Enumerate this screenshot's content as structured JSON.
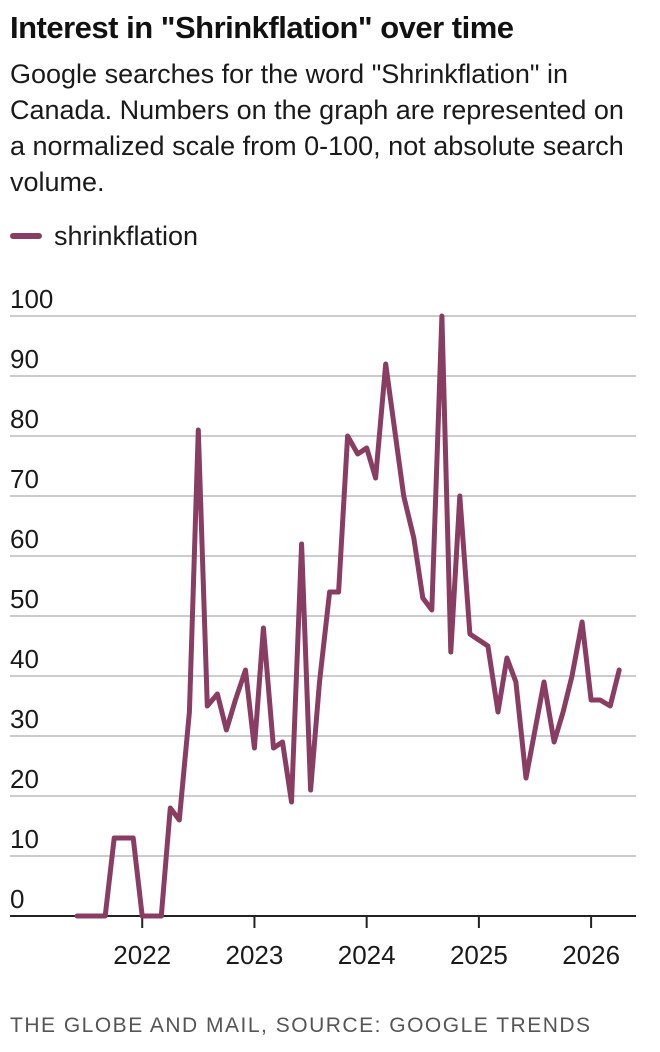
{
  "header": {
    "title": "Interest in \"Shrinkflation\" over time",
    "subtitle": "Google searches for the word \"Shrinkflation\" in Canada. Numbers on the graph are represented on a normalized scale from 0-100, not absolute search volume."
  },
  "legend": {
    "label": "shrinkflation"
  },
  "source": "THE GLOBE AND MAIL, SOURCE: GOOGLE TRENDS",
  "colors": {
    "series": "#8a3d63",
    "grid": "#cccccc",
    "axis": "#222222"
  },
  "chart_data": {
    "type": "line",
    "title": "",
    "xlabel": "",
    "ylabel": "",
    "ylim": [
      0,
      100
    ],
    "yticks": [
      0,
      10,
      20,
      30,
      40,
      50,
      60,
      70,
      80,
      90,
      100
    ],
    "xlim": [
      2021.0,
      2026.4
    ],
    "xticks": [
      "2022",
      "2023",
      "2024",
      "2025",
      "2026"
    ],
    "grid": true,
    "legend_position": "top-left",
    "series": [
      {
        "name": "shrinkflation",
        "x": [
          2021.42,
          2021.5,
          2021.58,
          2021.67,
          2021.75,
          2021.83,
          2021.92,
          2022.0,
          2022.08,
          2022.17,
          2022.25,
          2022.33,
          2022.42,
          2022.5,
          2022.58,
          2022.67,
          2022.75,
          2022.83,
          2022.92,
          2023.0,
          2023.08,
          2023.17,
          2023.25,
          2023.33,
          2023.42,
          2023.5,
          2023.58,
          2023.67,
          2023.75,
          2023.83,
          2023.92,
          2024.0,
          2024.08,
          2024.17,
          2024.25,
          2024.33,
          2024.42,
          2024.5,
          2024.58,
          2024.67,
          2024.75,
          2024.83,
          2024.92,
          2025.0,
          2025.08,
          2025.17,
          2025.25,
          2025.33,
          2025.42,
          2025.5,
          2025.58,
          2025.67,
          2025.75,
          2025.83,
          2025.92,
          2026.0,
          2026.08,
          2026.17,
          2026.25
        ],
        "values": [
          0,
          0,
          0,
          0,
          13,
          13,
          13,
          0,
          0,
          0,
          18,
          16,
          34,
          81,
          35,
          37,
          31,
          36,
          41,
          28,
          48,
          28,
          29,
          19,
          62,
          21,
          39,
          54,
          54,
          80,
          77,
          78,
          73,
          92,
          81,
          70,
          63,
          53,
          51,
          100,
          44,
          70,
          47,
          46,
          45,
          34,
          43,
          39,
          23,
          31,
          39,
          29,
          34,
          40,
          49,
          36,
          36,
          35,
          41
        ]
      }
    ]
  }
}
